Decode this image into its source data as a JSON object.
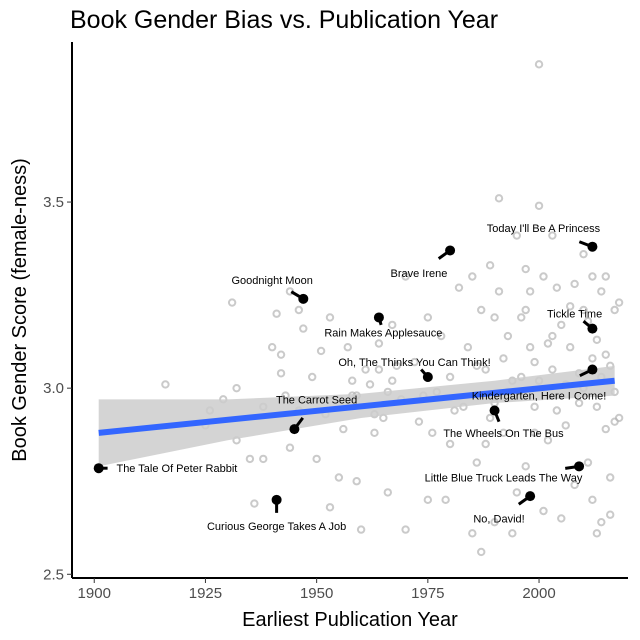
{
  "chart_data": {
    "type": "scatter",
    "title": "Book Gender Bias vs. Publication Year",
    "xlabel": "Earliest Publication Year",
    "ylabel": "Book Gender Score (female-ness)",
    "xlim": [
      1895,
      2020
    ],
    "ylim": [
      2.49,
      3.93
    ],
    "x_ticks": [
      1900,
      1925,
      1950,
      1975,
      2000
    ],
    "y_ticks": [
      2.5,
      3.0,
      3.5
    ],
    "y_tick_labels": [
      "2.5",
      "3.0",
      "3.5"
    ],
    "grid": false,
    "legend": "none",
    "colors": {
      "background_points": "#b3b3b3",
      "highlight_points": "#000000",
      "trend_line": "#3366ff",
      "confidence_band": "#cccccc"
    },
    "trend": {
      "x": [
        1901,
        2017
      ],
      "y": [
        2.88,
        3.02
      ],
      "ci_x": [
        1901,
        1930,
        1960,
        1990,
        2017
      ],
      "ci_upper": [
        2.97,
        2.97,
        2.985,
        3.02,
        3.06
      ],
      "ci_lower": [
        2.79,
        2.86,
        2.92,
        2.96,
        2.98
      ]
    },
    "background_points": [
      [
        1916,
        3.01
      ],
      [
        1925,
        2.9
      ],
      [
        1926,
        2.94
      ],
      [
        1929,
        2.97
      ],
      [
        1931,
        3.23
      ],
      [
        1932,
        2.86
      ],
      [
        1932,
        3.0
      ],
      [
        1935,
        2.81
      ],
      [
        1936,
        2.69
      ],
      [
        1938,
        2.95
      ],
      [
        1938,
        2.81
      ],
      [
        1940,
        3.11
      ],
      [
        1941,
        3.2
      ],
      [
        1942,
        3.09
      ],
      [
        1942,
        3.04
      ],
      [
        1943,
        2.98
      ],
      [
        1944,
        3.26
      ],
      [
        1944,
        2.84
      ],
      [
        1946,
        3.21
      ],
      [
        1947,
        3.16
      ],
      [
        1949,
        3.03
      ],
      [
        1950,
        2.81
      ],
      [
        1951,
        3.1
      ],
      [
        1952,
        2.93
      ],
      [
        1953,
        3.19
      ],
      [
        1953,
        2.68
      ],
      [
        1955,
        2.76
      ],
      [
        1956,
        2.89
      ],
      [
        1957,
        3.11
      ],
      [
        1958,
        3.02
      ],
      [
        1959,
        2.98
      ],
      [
        1959,
        2.75
      ],
      [
        1960,
        2.62
      ],
      [
        1961,
        3.05
      ],
      [
        1962,
        3.01
      ],
      [
        1963,
        2.93
      ],
      [
        1964,
        3.05
      ],
      [
        1964,
        3.12
      ],
      [
        1965,
        2.92
      ],
      [
        1966,
        2.99
      ],
      [
        1966,
        2.72
      ],
      [
        1967,
        3.17
      ],
      [
        1968,
        3.06
      ],
      [
        1969,
        2.97
      ],
      [
        1970,
        2.62
      ],
      [
        1970,
        3.3
      ],
      [
        1972,
        3.07
      ],
      [
        1973,
        2.91
      ],
      [
        1974,
        2.98
      ],
      [
        1975,
        3.19
      ],
      [
        1976,
        2.88
      ],
      [
        1977,
        2.99
      ],
      [
        1978,
        3.14
      ],
      [
        1979,
        2.7
      ],
      [
        1980,
        3.03
      ],
      [
        1980,
        2.85
      ],
      [
        1982,
        3.27
      ],
      [
        1983,
        2.95
      ],
      [
        1984,
        3.11
      ],
      [
        1985,
        3.3
      ],
      [
        1985,
        2.61
      ],
      [
        1986,
        3.06
      ],
      [
        1986,
        2.8
      ],
      [
        1987,
        2.56
      ],
      [
        1987,
        3.21
      ],
      [
        1988,
        3.05
      ],
      [
        1988,
        2.85
      ],
      [
        1989,
        3.33
      ],
      [
        1990,
        2.96
      ],
      [
        1990,
        3.19
      ],
      [
        1990,
        2.64
      ],
      [
        1991,
        3.26
      ],
      [
        1991,
        3.51
      ],
      [
        1992,
        3.08
      ],
      [
        1992,
        2.88
      ],
      [
        1993,
        2.99
      ],
      [
        1993,
        3.14
      ],
      [
        1994,
        3.02
      ],
      [
        1995,
        3.41
      ],
      [
        1995,
        2.72
      ],
      [
        1996,
        3.19
      ],
      [
        1996,
        3.03
      ],
      [
        1997,
        3.21
      ],
      [
        1997,
        2.79
      ],
      [
        1998,
        3.11
      ],
      [
        1998,
        3.26
      ],
      [
        1999,
        3.07
      ],
      [
        1999,
        2.95
      ],
      [
        2000,
        3.87
      ],
      [
        2000,
        3.49
      ],
      [
        2000,
        3.02
      ],
      [
        2001,
        3.3
      ],
      [
        2001,
        2.67
      ],
      [
        2002,
        3.12
      ],
      [
        2002,
        2.86
      ],
      [
        2003,
        3.41
      ],
      [
        2003,
        3.05
      ],
      [
        2004,
        2.94
      ],
      [
        2004,
        3.27
      ],
      [
        2005,
        3.17
      ],
      [
        2005,
        2.65
      ],
      [
        2006,
        3.01
      ],
      [
        2006,
        2.9
      ],
      [
        2007,
        3.22
      ],
      [
        2007,
        3.11
      ],
      [
        2008,
        3.28
      ],
      [
        2008,
        2.74
      ],
      [
        2009,
        3.04
      ],
      [
        2009,
        2.96
      ],
      [
        2010,
        3.36
      ],
      [
        2010,
        3.0
      ],
      [
        2011,
        3.18
      ],
      [
        2011,
        2.8
      ],
      [
        2012,
        3.08
      ],
      [
        2012,
        2.7
      ],
      [
        2013,
        3.13
      ],
      [
        2013,
        2.95
      ],
      [
        2014,
        3.26
      ],
      [
        2014,
        3.03
      ],
      [
        2015,
        3.3
      ],
      [
        2015,
        2.89
      ],
      [
        2016,
        3.06
      ],
      [
        2016,
        2.76
      ],
      [
        2017,
        3.21
      ],
      [
        2017,
        2.99
      ],
      [
        2017,
        2.91
      ],
      [
        2014,
        2.64
      ],
      [
        2012,
        3.3
      ],
      [
        2010,
        3.21
      ],
      [
        2003,
        3.14
      ],
      [
        1997,
        3.32
      ],
      [
        1981,
        2.94
      ],
      [
        1967,
        3.02
      ],
      [
        1958,
        2.98
      ],
      [
        1946,
        2.94
      ],
      [
        2018,
        3.23
      ],
      [
        2018,
        2.92
      ],
      [
        2015,
        3.09
      ],
      [
        1999,
        2.88
      ],
      [
        1989,
        2.92
      ],
      [
        1975,
        2.7
      ],
      [
        1963,
        2.88
      ],
      [
        1994,
        2.61
      ],
      [
        2013,
        2.61
      ],
      [
        2016,
        2.66
      ]
    ],
    "highlighted_books": [
      {
        "name": "The Tale Of Peter Rabbit",
        "x": 1901,
        "y": 2.785,
        "label_x": 1905,
        "label_y": 2.785,
        "label_anchor": "start"
      },
      {
        "name": "Goodnight Moon",
        "x": 1947,
        "y": 3.24,
        "label_x": 1940,
        "label_y": 3.29,
        "label_anchor": "middle"
      },
      {
        "name": "The Carrot Seed",
        "x": 1945,
        "y": 2.89,
        "label_x": 1950,
        "label_y": 2.97,
        "label_anchor": "middle"
      },
      {
        "name": "Curious George Takes A Job",
        "x": 1941,
        "y": 2.7,
        "label_x": 1941,
        "label_y": 2.63,
        "label_anchor": "middle"
      },
      {
        "name": "Rain Makes Applesauce",
        "x": 1964,
        "y": 3.19,
        "label_x": 1965,
        "label_y": 3.15,
        "label_anchor": "middle"
      },
      {
        "name": "Oh, The Thinks You Can Think!",
        "x": 1975,
        "y": 3.03,
        "label_x": 1972,
        "label_y": 3.07,
        "label_anchor": "middle"
      },
      {
        "name": "Brave Irene",
        "x": 1980,
        "y": 3.37,
        "label_x": 1973,
        "label_y": 3.31,
        "label_anchor": "middle"
      },
      {
        "name": "The Wheels On The Bus",
        "x": 1990,
        "y": 2.94,
        "label_x": 1992,
        "label_y": 2.88,
        "label_anchor": "middle"
      },
      {
        "name": "Little Blue Truck Leads The Way",
        "x": 2009,
        "y": 2.79,
        "label_x": 1992,
        "label_y": 2.76,
        "label_anchor": "middle"
      },
      {
        "name": "No, David!",
        "x": 1998,
        "y": 2.71,
        "label_x": 1991,
        "label_y": 2.65,
        "label_anchor": "middle"
      },
      {
        "name": "Today I'll Be A Princess",
        "x": 2012,
        "y": 3.38,
        "label_x": 2001,
        "label_y": 3.43,
        "label_anchor": "middle"
      },
      {
        "name": "Tickle Time",
        "x": 2012,
        "y": 3.16,
        "label_x": 2008,
        "label_y": 3.2,
        "label_anchor": "middle"
      },
      {
        "name": "Kindergarten, Here I Come!",
        "x": 2012,
        "y": 3.05,
        "label_x": 2000,
        "label_y": 2.98,
        "label_anchor": "middle"
      }
    ]
  }
}
